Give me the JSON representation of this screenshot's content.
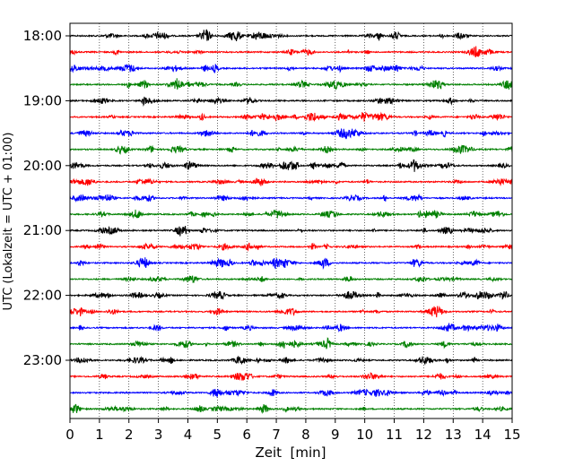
{
  "chart_data": {
    "type": "line",
    "subtype": "seismic-helicorder",
    "title": "",
    "xlabel": "Zeit  [min]",
    "ylabel": "UTC (Lokalzeit = UTC + 01:00)",
    "xlim": [
      0,
      15
    ],
    "x_ticks": [
      0,
      1,
      2,
      3,
      4,
      5,
      6,
      7,
      8,
      9,
      10,
      11,
      12,
      13,
      14,
      15
    ],
    "x_tick_labels": [
      "0",
      "1",
      "2",
      "3",
      "4",
      "5",
      "6",
      "7",
      "8",
      "9",
      "10",
      "11",
      "12",
      "13",
      "14",
      "15"
    ],
    "y_start": "18:00",
    "y_end": "23:45",
    "row_interval_minutes": 15,
    "y_tick_labels": [
      "18:00",
      "19:00",
      "20:00",
      "21:00",
      "22:00",
      "23:00"
    ],
    "x_grid": "dotted vertical lines at each minute",
    "y_grid": false,
    "trace_color_cycle": [
      "#000000",
      "#ff0000",
      "#0000ff",
      "#008000"
    ],
    "rows": [
      {
        "start": "18:00",
        "color": "#000000"
      },
      {
        "start": "18:15",
        "color": "#ff0000"
      },
      {
        "start": "18:30",
        "color": "#0000ff"
      },
      {
        "start": "18:45",
        "color": "#008000"
      },
      {
        "start": "19:00",
        "color": "#000000"
      },
      {
        "start": "19:15",
        "color": "#ff0000"
      },
      {
        "start": "19:30",
        "color": "#0000ff"
      },
      {
        "start": "19:45",
        "color": "#008000"
      },
      {
        "start": "20:00",
        "color": "#000000"
      },
      {
        "start": "20:15",
        "color": "#ff0000"
      },
      {
        "start": "20:30",
        "color": "#0000ff"
      },
      {
        "start": "20:45",
        "color": "#008000"
      },
      {
        "start": "21:00",
        "color": "#000000"
      },
      {
        "start": "21:15",
        "color": "#ff0000"
      },
      {
        "start": "21:30",
        "color": "#0000ff"
      },
      {
        "start": "21:45",
        "color": "#008000"
      },
      {
        "start": "22:00",
        "color": "#000000"
      },
      {
        "start": "22:15",
        "color": "#ff0000"
      },
      {
        "start": "22:30",
        "color": "#0000ff"
      },
      {
        "start": "22:45",
        "color": "#008000"
      },
      {
        "start": "23:00",
        "color": "#000000"
      },
      {
        "start": "23:15",
        "color": "#ff0000"
      },
      {
        "start": "23:30",
        "color": "#0000ff"
      },
      {
        "start": "23:45",
        "color": "#008000"
      }
    ]
  }
}
